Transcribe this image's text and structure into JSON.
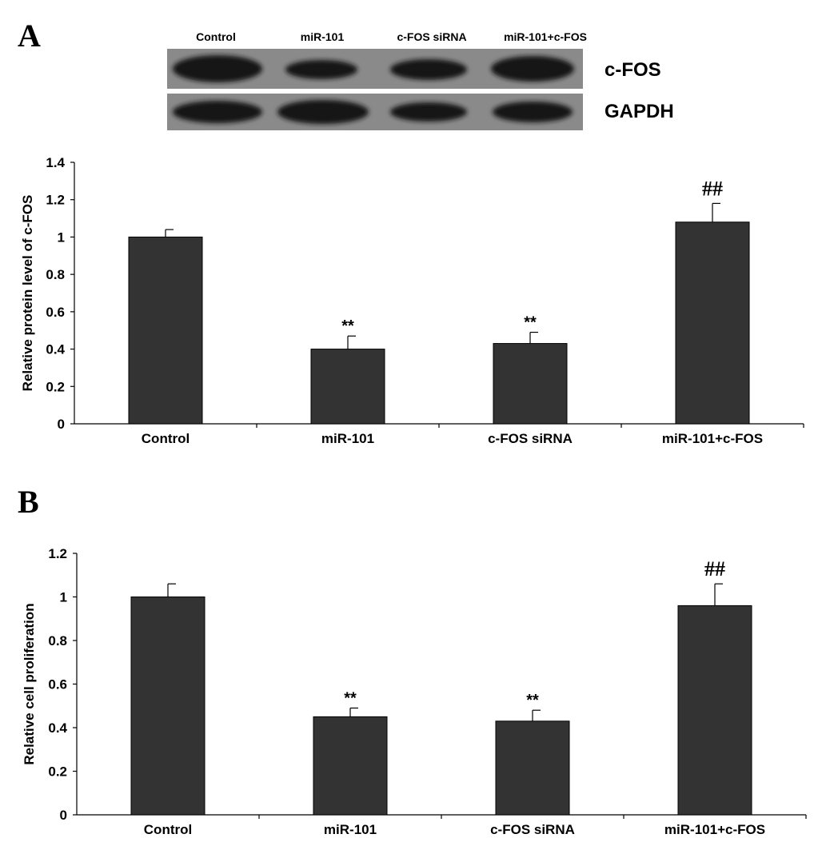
{
  "panels": {
    "a": "A",
    "b": "B"
  },
  "blot": {
    "lanes": [
      "Control",
      "miR-101",
      "c-FOS siRNA",
      "miR-101+c-FOS"
    ],
    "proteins": [
      "c-FOS",
      "GAPDH"
    ],
    "colors": {
      "background": "#8a8a8a",
      "band": "#151515"
    }
  },
  "chart_data": [
    {
      "type": "bar",
      "categories": [
        "Control",
        "miR-101",
        "c-FOS siRNA",
        "miR-101+c-FOS"
      ],
      "values": [
        1.0,
        0.4,
        0.43,
        1.08
      ],
      "errors": [
        0.04,
        0.07,
        0.06,
        0.1
      ],
      "significance": [
        "",
        "**",
        "**",
        "##"
      ],
      "ylabel": "Relative protein level of c-FOS",
      "xlabel": "",
      "ylim": [
        0,
        1.4
      ],
      "yticks": [
        0,
        0.2,
        0.4,
        0.6,
        0.8,
        1,
        1.2,
        1.4
      ],
      "ytick_labels": [
        "0",
        "0.2",
        "0.4",
        "0.6",
        "0.8",
        "1",
        "1.2",
        "1.4"
      ],
      "bar_color": "#333333",
      "grid": false
    },
    {
      "type": "bar",
      "categories": [
        "Control",
        "miR-101",
        "c-FOS siRNA",
        "miR-101+c-FOS"
      ],
      "values": [
        1.0,
        0.45,
        0.43,
        0.96
      ],
      "errors": [
        0.06,
        0.04,
        0.05,
        0.1
      ],
      "significance": [
        "",
        "**",
        "**",
        "##"
      ],
      "ylabel": "Relative cell proliferation",
      "xlabel": "",
      "ylim": [
        0,
        1.2
      ],
      "yticks": [
        0,
        0.2,
        0.4,
        0.6,
        0.8,
        1,
        1.2
      ],
      "ytick_labels": [
        "0",
        "0.2",
        "0.4",
        "0.6",
        "0.8",
        "1",
        "1.2"
      ],
      "bar_color": "#333333",
      "grid": false
    }
  ]
}
